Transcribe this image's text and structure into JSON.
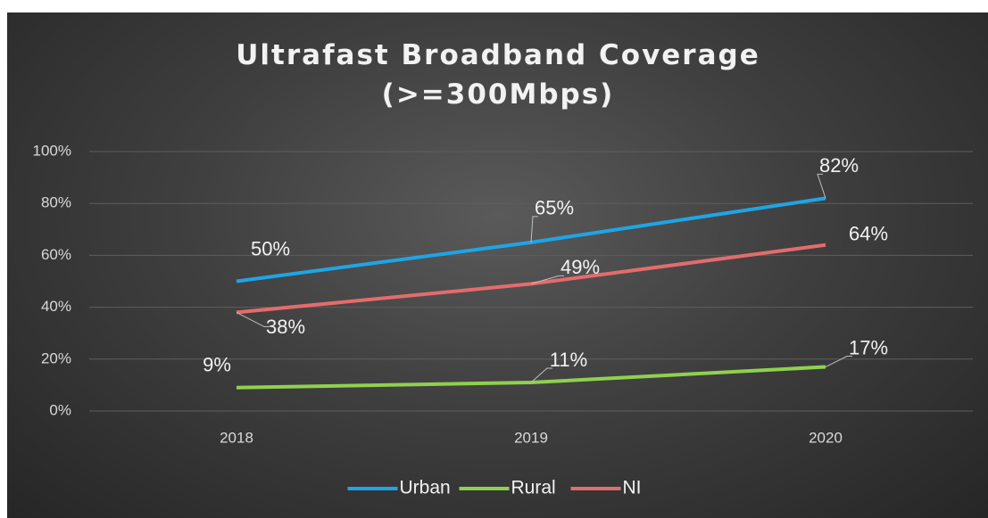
{
  "chart_data": {
    "type": "line",
    "title": "Ultrafast Broadband Coverage (>=300Mbps)",
    "categories": [
      "2018",
      "2019",
      "2020"
    ],
    "series": [
      {
        "name": "Urban",
        "color": "#1ea5e6",
        "values": [
          50,
          65,
          82
        ],
        "value_labels": [
          "50%",
          "65%",
          "82%"
        ]
      },
      {
        "name": "Rural",
        "color": "#8fd14f",
        "values": [
          9,
          11,
          17
        ],
        "value_labels": [
          "9%",
          "11%",
          "17%"
        ]
      },
      {
        "name": "NI",
        "color": "#e46c6c",
        "values": [
          38,
          49,
          64
        ],
        "value_labels": [
          "38%",
          "49%",
          "64%"
        ]
      }
    ],
    "ylim": [
      0,
      100
    ],
    "yticks": [
      {
        "value": 0,
        "label": "0%"
      },
      {
        "value": 20,
        "label": "20%"
      },
      {
        "value": 40,
        "label": "40%"
      },
      {
        "value": 60,
        "label": "60%"
      },
      {
        "value": 80,
        "label": "80%"
      },
      {
        "value": 100,
        "label": "100%"
      }
    ],
    "grid": true,
    "legend": "bottom"
  }
}
